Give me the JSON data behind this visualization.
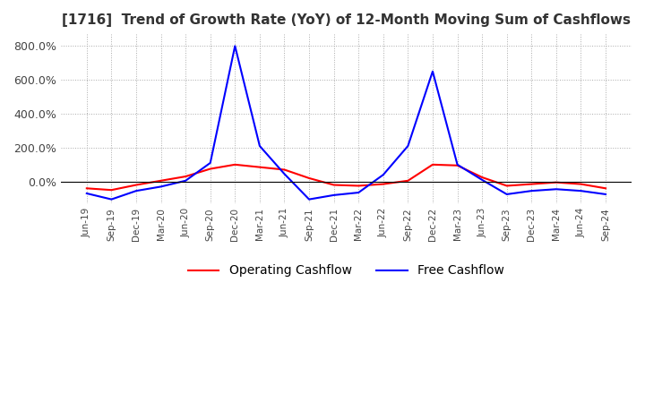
{
  "title": "[1716]  Trend of Growth Rate (YoY) of 12-Month Moving Sum of Cashflows",
  "title_fontsize": 11,
  "ylim": [
    -130,
    870
  ],
  "yticks": [
    0.0,
    200.0,
    400.0,
    600.0,
    800.0
  ],
  "background_color": "#ffffff",
  "grid_color": "#aaaaaa",
  "operating_color": "#ff0000",
  "free_color": "#0000ff",
  "x_labels": [
    "Jun-19",
    "Sep-19",
    "Dec-19",
    "Mar-20",
    "Jun-20",
    "Sep-20",
    "Dec-20",
    "Mar-21",
    "Jun-21",
    "Sep-21",
    "Dec-21",
    "Mar-22",
    "Jun-22",
    "Sep-22",
    "Dec-22",
    "Mar-23",
    "Jun-23",
    "Sep-23",
    "Dec-23",
    "Mar-24",
    "Jun-24",
    "Sep-24"
  ],
  "operating_cashflow": [
    -40,
    -50,
    -20,
    5,
    30,
    75,
    100,
    85,
    70,
    20,
    -20,
    -25,
    -15,
    5,
    100,
    95,
    25,
    -25,
    -15,
    -5,
    -15,
    -40
  ],
  "free_cashflow": [
    -70,
    -105,
    -55,
    -30,
    5,
    110,
    800,
    210,
    45,
    -105,
    -80,
    -65,
    40,
    210,
    650,
    100,
    10,
    -75,
    -55,
    -45,
    -55,
    -75
  ]
}
